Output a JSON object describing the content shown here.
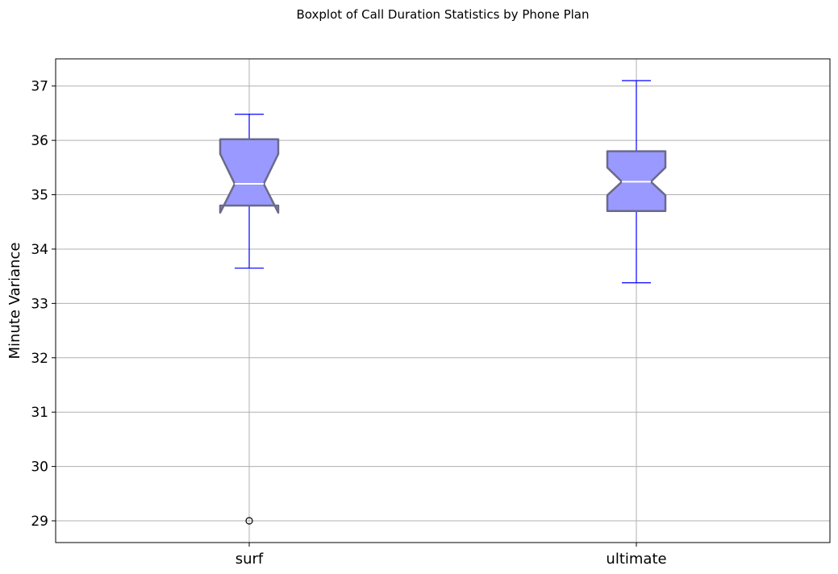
{
  "chart_data": {
    "type": "boxplot",
    "title": "Boxplot of Call Duration Statistics by Phone Plan",
    "xlabel": "",
    "ylabel": "Minute Variance",
    "ylim": [
      28.6,
      37.5
    ],
    "yticks": [
      29,
      30,
      31,
      32,
      33,
      34,
      35,
      36,
      37
    ],
    "grid": true,
    "notched": true,
    "categories": [
      "surf",
      "ultimate"
    ],
    "boxes": [
      {
        "label": "surf",
        "whisker_low": 33.65,
        "q1": 34.8,
        "median": 35.2,
        "q3": 36.02,
        "whisker_high": 36.48,
        "notch_low": 34.67,
        "notch_high": 35.75,
        "outliers": [
          29.0
        ]
      },
      {
        "label": "ultimate",
        "whisker_low": 33.38,
        "q1": 34.7,
        "median": 35.24,
        "q3": 35.8,
        "whisker_high": 37.1,
        "notch_low": 34.99,
        "notch_high": 35.5,
        "outliers": []
      }
    ],
    "colors": {
      "box_fill": "#9999ff",
      "box_edge": "#6a6a8a",
      "whisker": "#0000ff",
      "median": "#ffffff",
      "grid": "#b0b0b0",
      "outlier": "#000000"
    }
  }
}
